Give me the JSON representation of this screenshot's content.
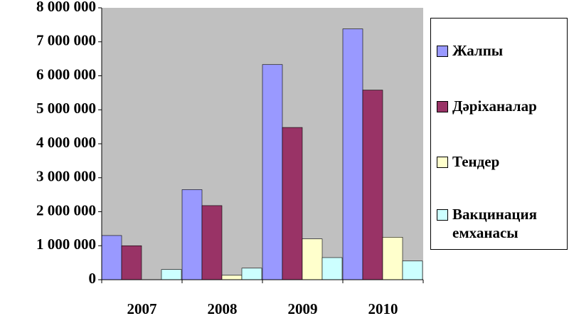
{
  "chart_data": {
    "type": "bar",
    "categories": [
      "2007",
      "2008",
      "2009",
      "2010"
    ],
    "series": [
      {
        "name": "Жалпы",
        "color": "#9999ff",
        "values": [
          1300000,
          2650000,
          6330000,
          7380000
        ]
      },
      {
        "name": "Дәріханалар",
        "color": "#993366",
        "values": [
          1000000,
          2180000,
          4480000,
          5580000
        ]
      },
      {
        "name": "Тендер",
        "color": "#ffffcc",
        "values": [
          0,
          130000,
          1200000,
          1250000
        ]
      },
      {
        "name": "Вакцинация емханасы",
        "color": "#ccffff",
        "values": [
          300000,
          340000,
          650000,
          550000
        ]
      }
    ],
    "ylim": [
      0,
      8000000
    ],
    "yticks": [
      0,
      {
        "value": 1000000,
        "label": "1 000 000"
      },
      {
        "value": 2000000,
        "label": "2 000 000"
      },
      {
        "value": 3000000,
        "label": "3 000 000"
      },
      {
        "value": 4000000,
        "label": "4 000 000"
      },
      {
        "value": 5000000,
        "label": "5 000 000"
      },
      {
        "value": 6000000,
        "label": "6 000 000"
      },
      {
        "value": 7000000,
        "label": "7 000 000"
      },
      {
        "value": 8000000,
        "label": "8 000 000"
      }
    ],
    "legend": "right",
    "plot_background": "#c0c0c0"
  }
}
